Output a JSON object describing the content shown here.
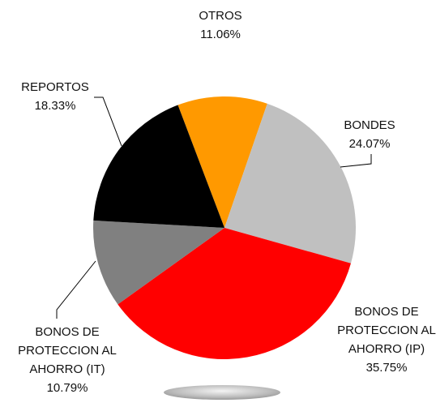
{
  "chart_data": {
    "type": "pie",
    "categories": [
      "OTROS",
      "BONDES",
      "BONOS DE PROTECCION AL AHORRO (IP)",
      "BONOS DE PROTECCION AL AHORRO (IT)",
      "REPORTOS"
    ],
    "values": [
      11.06,
      24.07,
      35.75,
      10.79,
      18.33
    ],
    "value_labels": [
      "11.06%",
      "24.07%",
      "35.75%",
      "10.79%",
      "18.33%"
    ],
    "colors": [
      "#ff9900",
      "#c0c0c0",
      "#ff0000",
      "#808080",
      "#000000"
    ]
  }
}
